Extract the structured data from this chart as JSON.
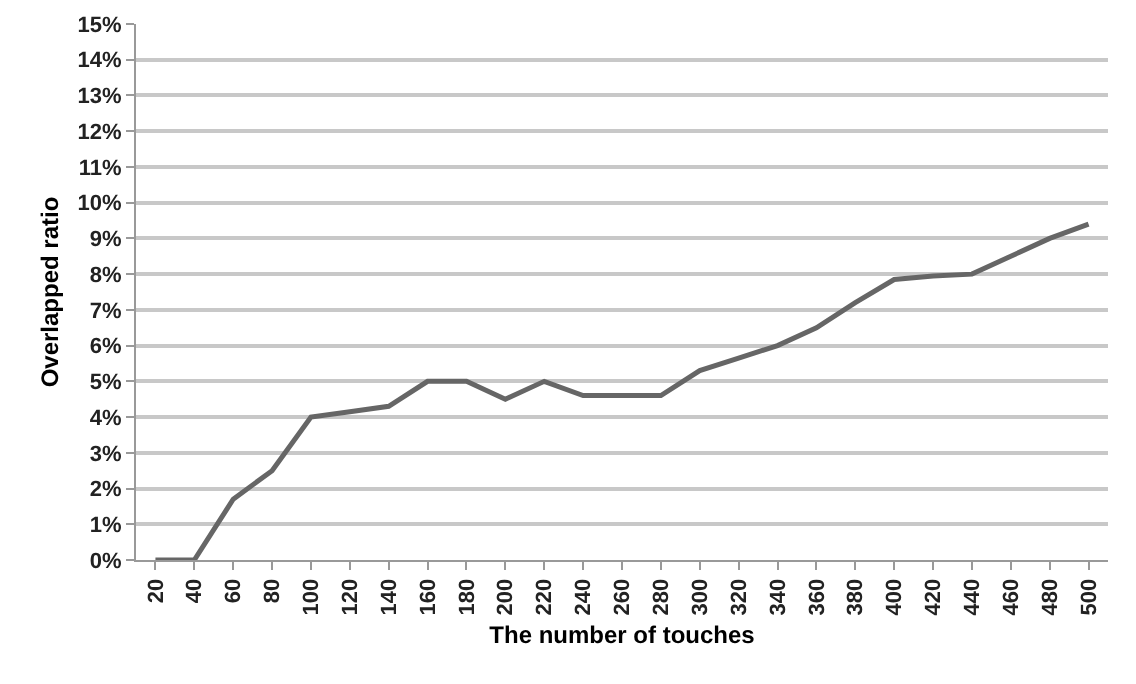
{
  "chart_data": {
    "type": "line",
    "xlabel": "The number of touches",
    "ylabel": "Overlapped ratio",
    "categories": [
      "20",
      "40",
      "60",
      "80",
      "100",
      "120",
      "140",
      "160",
      "180",
      "200",
      "220",
      "240",
      "260",
      "280",
      "300",
      "320",
      "340",
      "360",
      "380",
      "400",
      "420",
      "440",
      "460",
      "480",
      "500"
    ],
    "series": [
      {
        "color": "#666666",
        "values": [
          0,
          0,
          1.7,
          2.5,
          4.0,
          4.15,
          4.3,
          5.0,
          5.0,
          4.5,
          5.0,
          4.6,
          4.6,
          4.6,
          5.3,
          5.65,
          6.0,
          6.5,
          7.2,
          7.85,
          7.95,
          8.0,
          8.5,
          9.0,
          9.4
        ]
      }
    ],
    "ylim": [
      0,
      15
    ],
    "yticks": [
      {
        "value": 0,
        "label": "0%"
      },
      {
        "value": 1,
        "label": "1%"
      },
      {
        "value": 2,
        "label": "2%"
      },
      {
        "value": 3,
        "label": "3%"
      },
      {
        "value": 4,
        "label": "4%"
      },
      {
        "value": 5,
        "label": "5%"
      },
      {
        "value": 6,
        "label": "6%"
      },
      {
        "value": 7,
        "label": "7%"
      },
      {
        "value": 8,
        "label": "8%"
      },
      {
        "value": 9,
        "label": "9%"
      },
      {
        "value": 10,
        "label": "10%"
      },
      {
        "value": 11,
        "label": "11%"
      },
      {
        "value": 12,
        "label": "12%"
      },
      {
        "value": 13,
        "label": "13%"
      },
      {
        "value": 14,
        "label": "14%"
      },
      {
        "value": 15,
        "label": "15%"
      }
    ],
    "grid": "y",
    "marker": "none",
    "line_style": "solid"
  }
}
